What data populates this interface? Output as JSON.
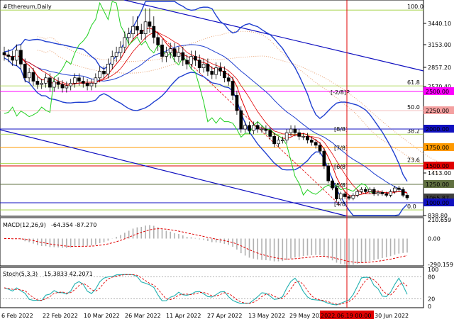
{
  "chart_title": "#Ethereum,Daily",
  "macd_title": "MACD(12,26,9)",
  "macd_values": "-64.354 -87.270",
  "stoch_title": "Stoch(5,3,3)",
  "stoch_values": "15.3833 42.2071",
  "colors": {
    "bull": "#000000",
    "bear": "#000000",
    "bands": "#1f3fd0",
    "ma_red": "#e00000",
    "ma_green": "#20d020",
    "cloud": "#e8a070",
    "fib": "#9acd32",
    "macd_signal": "#e00000",
    "stoch_main": "#20b0b0",
    "stoch_signal": "#e00000",
    "vline": "#e00000"
  },
  "chart_data": {
    "type": "candlestick",
    "price_axis": {
      "min": 838.8,
      "max": 3580,
      "ticks": [
        "3440.10",
        "3153.00",
        "2857.20",
        "2570.40",
        "2250.00",
        "2000.00",
        "1750.00",
        "1500.00",
        "1413.00",
        "1250.00",
        "1000.00",
        "838.80"
      ]
    },
    "level_labels": [
      {
        "price": 2500,
        "text": "2500.00",
        "bg": "#ff00ff"
      },
      {
        "price": 2250,
        "text": "2250.00",
        "bg": "#f4a0a0"
      },
      {
        "price": 2000,
        "text": "2000.00",
        "bg": "#1010c0"
      },
      {
        "price": 1750,
        "text": "1750.00",
        "bg": "#ff9900"
      },
      {
        "price": 1500,
        "text": "1500.00",
        "bg": "#e00000"
      },
      {
        "price": 1250,
        "text": "1250.00",
        "bg": "#607040"
      },
      {
        "price": 1065,
        "text": "1065.87",
        "bg": "#404040"
      },
      {
        "price": 1000,
        "text": "1000.00",
        "bg": "#1010c0"
      }
    ],
    "fib_levels": [
      {
        "price": 3525,
        "text": "100.0"
      },
      {
        "price": 2580,
        "text": "61.8"
      },
      {
        "price": 2250,
        "text": "50.0"
      },
      {
        "price": 1930,
        "text": "38.2"
      },
      {
        "price": 1535,
        "text": "23.6"
      },
      {
        "price": 910,
        "text": "0.0"
      }
    ],
    "murrey_labels": [
      {
        "price": 2490,
        "text": "[-2/8]P"
      },
      {
        "price": 2000,
        "text": "[8/8]"
      },
      {
        "price": 1745,
        "text": "[7/8]"
      },
      {
        "price": 1490,
        "text": "[6/8]"
      },
      {
        "price": 1240,
        "text": "[5/8]"
      },
      {
        "price": 985,
        "text": "[4/8]"
      }
    ],
    "x_labels": [
      "6 Feb 2022",
      "22 Feb 2022",
      "10 Mar 2022",
      "26 Mar 2022",
      "11 Apr 2022",
      "27 Apr 2022",
      "13 May 2022",
      "29 May 2022",
      "2022.06.19 00:00",
      "30 Jun 2022"
    ],
    "highlight_date": "2022.06.19 00:00",
    "closes": [
      3020,
      3000,
      2950,
      3080,
      2900,
      2700,
      2780,
      2650,
      2600,
      2620,
      2700,
      2560,
      2640,
      2600,
      2550,
      2580,
      2620,
      2700,
      2650,
      2620,
      2580,
      2620,
      2700,
      2800,
      2760,
      2900,
      3000,
      3050,
      3120,
      3250,
      3300,
      3400,
      3350,
      3300,
      3450,
      3400,
      3250,
      3150,
      3000,
      3050,
      3100,
      3000,
      3050,
      2950,
      2900,
      3000,
      2950,
      2850,
      2900,
      2800,
      2750,
      2850,
      2800,
      2700,
      2650,
      2450,
      2250,
      2000,
      2050,
      1980,
      2050,
      2000,
      2000,
      1980,
      1900,
      1800,
      1850,
      1850,
      1950,
      2000,
      1950,
      1900,
      1900,
      1850,
      1820,
      1780,
      1700,
      1500,
      1300,
      1200,
      1050,
      1120,
      1080,
      1060,
      1100,
      1150,
      1180,
      1150,
      1180,
      1120,
      1140,
      1120,
      1100,
      1150,
      1200,
      1180,
      1100,
      1065
    ],
    "series": [
      {
        "name": "MACD(12,26,9)",
        "last": -64.354,
        "signal": -87.27
      },
      {
        "name": "Stoch(5,3,3)",
        "main_last": 15.3833,
        "signal_last": 42.2071
      }
    ],
    "macd_axis": {
      "ticks": [
        "210.659",
        "0.00",
        "-290.159"
      ],
      "min": -290.159,
      "max": 210.659
    },
    "stoch_axis": {
      "ticks": [
        "100",
        "80",
        "20",
        "0"
      ],
      "min": 0,
      "max": 100
    }
  }
}
